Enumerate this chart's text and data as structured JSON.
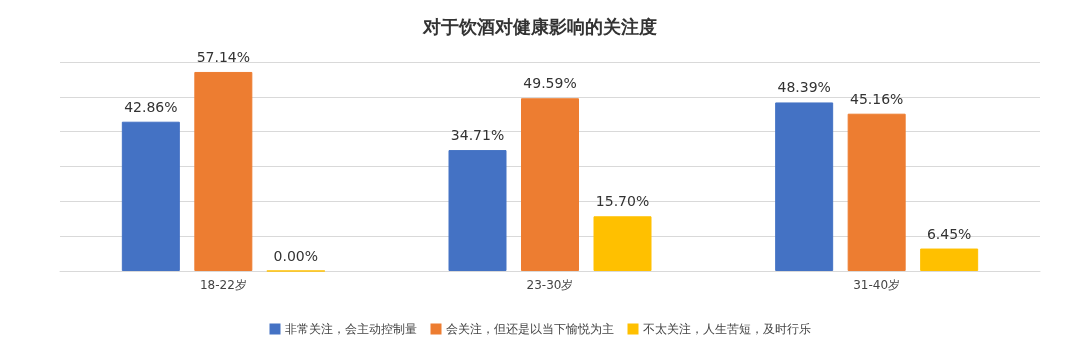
{
  "chart_data": {
    "type": "bar",
    "title": "对于饮酒对健康影响的关注度",
    "categories": [
      "18-22岁",
      "23-30岁",
      "31-40岁"
    ],
    "series": [
      {
        "name": "非常关注，会主动控制量",
        "color": "#4472c4",
        "values": [
          42.86,
          34.71,
          48.39
        ],
        "value_labels": [
          "42.86%",
          "34.71%",
          "48.39%"
        ]
      },
      {
        "name": "会关注，但还是以当下愉悦为主",
        "color": "#ed7d31",
        "values": [
          57.14,
          49.59,
          45.16
        ],
        "value_labels": [
          "57.14%",
          "49.59%",
          "45.16%"
        ]
      },
      {
        "name": "不太关注，人生苦短，及时行乐",
        "color": "#ffc000",
        "values": [
          0,
          15.7,
          6.45
        ],
        "value_labels": [
          "0.00%",
          "15.70%",
          "6.45%"
        ]
      }
    ],
    "ylim": [
      0,
      60
    ],
    "yticks": [
      {
        "value": 0,
        "label": null
      },
      {
        "value": 10,
        "label": null
      },
      {
        "value": 20,
        "label": null
      },
      {
        "value": 30,
        "label": null
      },
      {
        "value": 40,
        "label": null
      },
      {
        "value": 50,
        "label": null
      },
      {
        "value": 60,
        "label": null
      }
    ],
    "tick_labels": "x",
    "grid": "y",
    "legend": "bottom"
  }
}
